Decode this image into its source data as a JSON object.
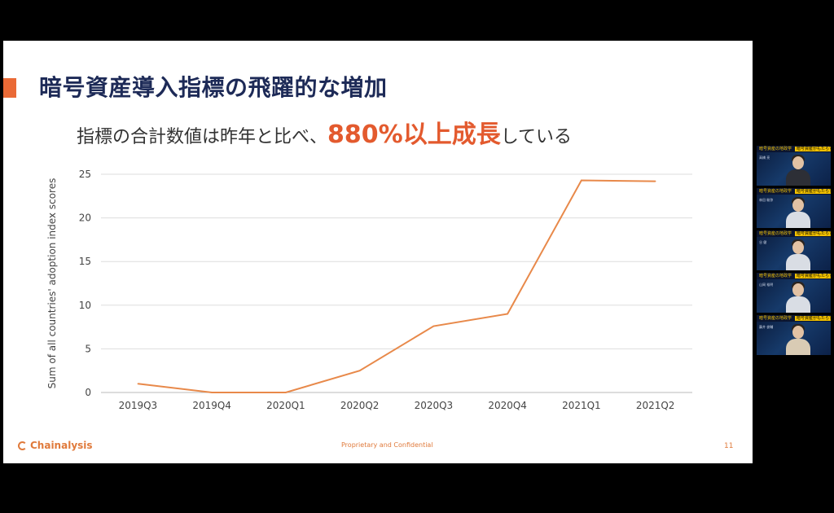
{
  "slide": {
    "title": "暗号資産導入指標の飛躍的な増加",
    "subtitle_before": "指標の合計数値は昨年と比べ、",
    "subtitle_highlight": "880%以上成長",
    "subtitle_after": "している",
    "footer_logo": "Chainalysis",
    "footer_center": "Proprietary and Confidential",
    "page_number": "11",
    "accent_color": "#EA6A36",
    "title_color": "#1D2A57"
  },
  "chart_data": {
    "type": "line",
    "categories": [
      "2019Q3",
      "2019Q4",
      "2020Q1",
      "2020Q2",
      "2020Q3",
      "2020Q4",
      "2021Q1",
      "2021Q2"
    ],
    "series": [
      {
        "values": [
          1.0,
          0.0,
          0.0,
          2.5,
          7.6,
          9.0,
          24.3,
          24.2
        ],
        "color": "#E8894A"
      }
    ],
    "ylabel": "Sum of all countries' adoption index scores",
    "xlabel": "",
    "ylim": [
      0,
      25
    ],
    "yticks": [
      "0",
      "5",
      "10",
      "15",
      "20",
      "25"
    ],
    "grid": true
  },
  "participants": [
    {
      "banner": "暗号資産の地政学",
      "tag": "暗号資産がもたらす新秩序",
      "name": "高橋 亮",
      "body": "dark"
    },
    {
      "banner": "暗号資産の地政学",
      "tag": "暗号資産がもたらす新秩序",
      "name": "林田 駿弥",
      "body": "light"
    },
    {
      "banner": "暗号資産の地政学",
      "tag": "暗号資産がもたらす新秩序",
      "name": "谷 健",
      "body": "light"
    },
    {
      "banner": "暗号資産の地政学",
      "tag": "暗号資産がもたらす新秩序",
      "name": "山岡 裕明",
      "body": "light"
    },
    {
      "banner": "暗号資産の地政学",
      "tag": "暗号資産がもたらす新秩序",
      "name": "藤井 俊輔",
      "body": "beige"
    }
  ]
}
